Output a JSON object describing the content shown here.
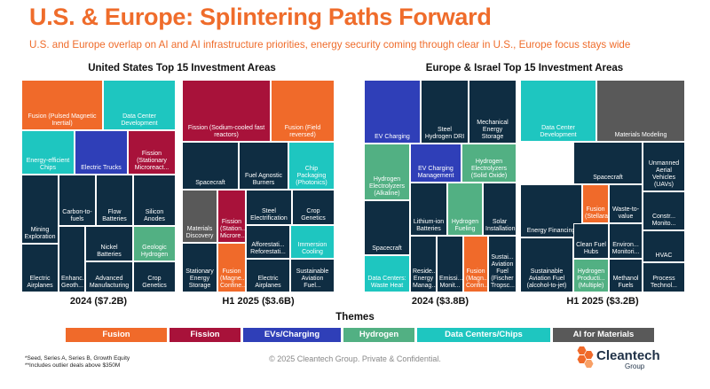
{
  "header": {
    "title": "U.S. & Europe: Splintering Paths Forward",
    "subtitle": "U.S. and Europe overlap on AI and AI infrastructure priorities, energy security coming through clear in U.S., Europe focus stays wide"
  },
  "sections": {
    "us_title": "United States Top 15 Investment Areas",
    "eu_title": "Europe & Israel Top 15 Investment Areas"
  },
  "colors": {
    "Fusion": "#f06a2a",
    "Fission": "#a8123a",
    "EVs/Charging": "#2f3fb8",
    "Hydrogen": "#52b083",
    "Data Centers/Chips": "#1ec6c0",
    "AI for Materials": "#595959",
    "Other": "#0f2d42"
  },
  "themes": {
    "title": "Themes",
    "items": [
      {
        "label": "Fusion",
        "theme": "Fusion"
      },
      {
        "label": "Fission",
        "theme": "Fission"
      },
      {
        "label": "EVs/Charging",
        "theme": "EVs/Charging"
      },
      {
        "label": "Hydrogen",
        "theme": "Hydrogen"
      },
      {
        "label": "Data Centers/Chips",
        "theme": "Data Centers/Chips"
      },
      {
        "label": "AI for Materials",
        "theme": "AI for Materials"
      }
    ]
  },
  "chart_data": [
    {
      "type": "treemap",
      "label": "2024 ($7.2B)",
      "tiles": [
        {
          "label": "Fusion (Pulsed Magnetic Inertial)",
          "theme": "Fusion"
        },
        {
          "label": "Data Center Development",
          "theme": "Data Centers/Chips"
        },
        {
          "label": "Energy-efficient Chips",
          "theme": "Data Centers/Chips"
        },
        {
          "label": "Electric Trucks",
          "theme": "EVs/Charging"
        },
        {
          "label": "Fission (Stationary Microreact...",
          "theme": "Fission"
        },
        {
          "label": "Mining Exploration",
          "theme": "Other"
        },
        {
          "label": "Carbon-to-fuels",
          "theme": "Other"
        },
        {
          "label": "Flow Batteries",
          "theme": "Other"
        },
        {
          "label": "Silicon Anodes",
          "theme": "Other"
        },
        {
          "label": "Nickel Batteries",
          "theme": "Other"
        },
        {
          "label": "Geologic Hydrogen",
          "theme": "Hydrogen"
        },
        {
          "label": "Electric Airplanes",
          "theme": "Other"
        },
        {
          "label": "Enhanc... Geoth...",
          "theme": "Other"
        },
        {
          "label": "Advanced Manufacturing",
          "theme": "Other"
        },
        {
          "label": "Crop Genetics",
          "theme": "Other"
        }
      ]
    },
    {
      "type": "treemap",
      "label": "H1 2025 ($3.6B)",
      "tiles": [
        {
          "label": "Fission (Sodium-cooled fast reactors)",
          "theme": "Fission"
        },
        {
          "label": "Fusion (Field reversed)",
          "theme": "Fusion"
        },
        {
          "label": "Spacecraft",
          "theme": "Other"
        },
        {
          "label": "Fuel Agnostic Burners",
          "theme": "Other"
        },
        {
          "label": "Chip Packaging (Photonics)",
          "theme": "Data Centers/Chips"
        },
        {
          "label": "Materials Discovery",
          "theme": "AI for Materials"
        },
        {
          "label": "Fission (Station... Microre...",
          "theme": "Fission"
        },
        {
          "label": "Steel Electrification",
          "theme": "Other"
        },
        {
          "label": "Crop Genetics",
          "theme": "Other"
        },
        {
          "label": "Afforestati... Reforestati...",
          "theme": "Other"
        },
        {
          "label": "Immersion Cooling",
          "theme": "Data Centers/Chips"
        },
        {
          "label": "Stationary Energy Storage",
          "theme": "Other"
        },
        {
          "label": "Fusion (Magne... Confine...",
          "theme": "Fusion"
        },
        {
          "label": "Electric Airplanes",
          "theme": "Other"
        },
        {
          "label": "Sustainable Aviation Fuel...",
          "theme": "Other"
        }
      ]
    },
    {
      "type": "treemap",
      "label": "2024 ($3.8B)",
      "tiles": [
        {
          "label": "EV Charging",
          "theme": "EVs/Charging"
        },
        {
          "label": "Steel Hydrogen DRI",
          "theme": "Other"
        },
        {
          "label": "Mechanical Energy Storage",
          "theme": "Other"
        },
        {
          "label": "Hydrogen Electrolyzers (Alkaline)",
          "theme": "Hydrogen"
        },
        {
          "label": "EV Charging Management",
          "theme": "EVs/Charging"
        },
        {
          "label": "Hydrogen Electrolyzers (Solid Oxide)",
          "theme": "Hydrogen"
        },
        {
          "label": "Lithium-ion Batteries",
          "theme": "Other"
        },
        {
          "label": "Hydrogen Fueling",
          "theme": "Hydrogen"
        },
        {
          "label": "Solar Installation",
          "theme": "Other"
        },
        {
          "label": "Spacecraft",
          "theme": "Other"
        },
        {
          "label": "Data Centers: Waste Heat",
          "theme": "Data Centers/Chips"
        },
        {
          "label": "Reside... Energy Manag...",
          "theme": "Other"
        },
        {
          "label": "Emissi... Monit...",
          "theme": "Other"
        },
        {
          "label": "Fusion (Magn... Confin...",
          "theme": "Fusion"
        },
        {
          "label": "Sustai... Aviation Fuel (Fischer Tropsc...",
          "theme": "Other"
        }
      ]
    },
    {
      "type": "treemap",
      "label": "H1 2025 ($3.2B)",
      "tiles": [
        {
          "label": "Data Center Development",
          "theme": "Data Centers/Chips"
        },
        {
          "label": "Materials Modeling",
          "theme": "AI for Materials"
        },
        {
          "label": "Unmanned Aerial Vehicles (UAVs)",
          "theme": "Other"
        },
        {
          "label": "Spacecraft",
          "theme": "Other"
        },
        {
          "label": "Energy Financing",
          "theme": "Other"
        },
        {
          "label": "Fusion (Stellarat...",
          "theme": "Fusion"
        },
        {
          "label": "Waste-to-value",
          "theme": "Other"
        },
        {
          "label": "Constr... Monito...",
          "theme": "Other"
        },
        {
          "label": "Clean Fuel Hubs",
          "theme": "Other"
        },
        {
          "label": "Environ... Monitori...",
          "theme": "Other"
        },
        {
          "label": "HVAC",
          "theme": "Other"
        },
        {
          "label": "Sustainable Aviation Fuel (alcohol-to-jet)",
          "theme": "Other"
        },
        {
          "label": "Hydrogen Producti... (Multiple)",
          "theme": "Hydrogen"
        },
        {
          "label": "Methanol Fuels",
          "theme": "Other"
        },
        {
          "label": "Process Technol...",
          "theme": "Other"
        }
      ]
    }
  ],
  "footer": {
    "footnote_1": "*Seed, Series A, Series B, Growth Equity",
    "footnote_2": "**Includes outlier deals above $350M",
    "copyright": "© 2025 Cleantech Group. Private & Confidential.",
    "logo_name": "Cleantech",
    "logo_sub": "Group"
  }
}
